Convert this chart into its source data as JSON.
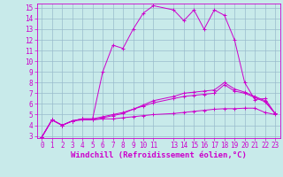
{
  "background_color": "#c8eaea",
  "line_color": "#cc00cc",
  "grid_color": "#99bbcc",
  "xlabel": "Windchill (Refroidissement éolien,°C)",
  "tick_fontsize": 5.5,
  "xlabel_fontsize": 6.5,
  "xlim": [
    -0.5,
    23.5
  ],
  "ylim": [
    2.8,
    15.4
  ],
  "yticks": [
    3,
    4,
    5,
    6,
    7,
    8,
    9,
    10,
    11,
    12,
    13,
    14,
    15
  ],
  "xtick_positions": [
    0,
    1,
    2,
    3,
    4,
    5,
    6,
    7,
    8,
    9,
    10,
    11,
    13,
    14,
    15,
    16,
    17,
    18,
    19,
    20,
    21,
    22,
    23
  ],
  "xtick_labels": [
    "0",
    "1",
    "2",
    "3",
    "4",
    "5",
    "6",
    "7",
    "8",
    "9",
    "10",
    "11",
    "13",
    "14",
    "15",
    "16",
    "17",
    "18",
    "19",
    "20",
    "21",
    "22",
    "23"
  ],
  "series": [
    {
      "x": [
        0,
        1,
        2,
        3,
        4,
        5,
        6,
        7,
        8,
        9,
        10,
        11,
        13,
        14,
        15,
        16,
        17,
        18,
        19,
        20,
        21,
        22,
        23
      ],
      "y": [
        2.9,
        4.5,
        4.0,
        4.4,
        4.5,
        4.5,
        4.6,
        4.6,
        4.7,
        4.8,
        4.9,
        5.0,
        5.1,
        5.2,
        5.3,
        5.4,
        5.5,
        5.55,
        5.55,
        5.6,
        5.6,
        5.2,
        5.0
      ]
    },
    {
      "x": [
        0,
        1,
        2,
        3,
        4,
        5,
        6,
        7,
        8,
        9,
        10,
        11,
        13,
        14,
        15,
        16,
        17,
        18,
        19,
        20,
        21,
        22,
        23
      ],
      "y": [
        2.9,
        4.5,
        4.0,
        4.4,
        4.6,
        4.6,
        4.8,
        5.0,
        5.2,
        5.5,
        5.8,
        6.1,
        6.5,
        6.7,
        6.8,
        6.9,
        7.0,
        7.8,
        7.2,
        7.0,
        6.6,
        6.2,
        5.1
      ]
    },
    {
      "x": [
        0,
        1,
        2,
        3,
        4,
        5,
        6,
        7,
        8,
        9,
        10,
        11,
        13,
        14,
        15,
        16,
        17,
        18,
        19,
        20,
        21,
        22,
        23
      ],
      "y": [
        2.9,
        4.5,
        4.0,
        4.4,
        4.6,
        4.5,
        4.7,
        4.9,
        5.1,
        5.5,
        5.9,
        6.3,
        6.7,
        7.0,
        7.1,
        7.2,
        7.3,
        8.0,
        7.4,
        7.1,
        6.7,
        6.3,
        5.1
      ]
    },
    {
      "x": [
        0,
        1,
        2,
        3,
        4,
        5,
        6,
        7,
        8,
        9,
        10,
        11,
        13,
        14,
        15,
        16,
        17,
        18,
        19,
        20,
        21,
        22,
        23
      ],
      "y": [
        2.9,
        4.5,
        4.0,
        4.4,
        4.6,
        4.6,
        9.0,
        11.5,
        11.2,
        13.0,
        14.5,
        15.2,
        14.8,
        13.8,
        14.8,
        13.0,
        14.8,
        14.3,
        12.0,
        8.0,
        6.4,
        6.5,
        5.1
      ]
    }
  ]
}
